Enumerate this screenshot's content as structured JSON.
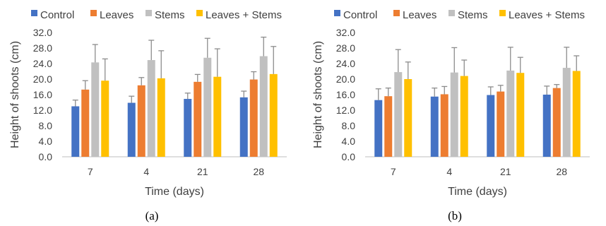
{
  "colors": {
    "Control": "#4472C4",
    "Leaves": "#ED7D31",
    "Stems": "#C0C0C0",
    "Leaves + Stems": "#FFC000",
    "error_bar": "#8c8c8c",
    "axis": "#bfbfbf"
  },
  "chart_data": [
    {
      "type": "bar",
      "caption": "(a)",
      "xlabel": "Time (days)",
      "ylabel": "Height of shoots (cm)",
      "ylim": [
        0,
        32
      ],
      "yticks": [
        "0.0",
        "4.0",
        "8.0",
        "12.0",
        "16.0",
        "20.0",
        "24.0",
        "28.0",
        "32.0"
      ],
      "grid": false,
      "legend_position": "top",
      "categories": [
        "7",
        "4",
        "21",
        "28"
      ],
      "series": [
        {
          "name": "Control",
          "values": [
            13.0,
            13.9,
            14.9,
            15.3
          ],
          "errors": [
            1.6,
            1.7,
            1.5,
            1.6
          ]
        },
        {
          "name": "Leaves",
          "values": [
            17.3,
            18.4,
            19.3,
            19.9
          ],
          "errors": [
            2.3,
            2.0,
            1.9,
            2.0
          ]
        },
        {
          "name": "Stems",
          "values": [
            24.3,
            24.9,
            25.5,
            25.9
          ],
          "errors": [
            4.6,
            5.1,
            5.0,
            4.9
          ]
        },
        {
          "name": "Leaves + Stems",
          "values": [
            19.6,
            20.2,
            20.6,
            21.3
          ],
          "errors": [
            5.6,
            7.1,
            7.2,
            7.1
          ]
        }
      ]
    },
    {
      "type": "bar",
      "caption": "(b)",
      "xlabel": "Time (days)",
      "ylabel": "Height of shoots (cm)",
      "ylim": [
        0,
        32
      ],
      "yticks": [
        "0.0",
        "4.0",
        "8.0",
        "12.0",
        "16.0",
        "20.0",
        "24.0",
        "28.0",
        "32.0"
      ],
      "grid": false,
      "legend_position": "top",
      "categories": [
        "7",
        "4",
        "21",
        "28"
      ],
      "series": [
        {
          "name": "Control",
          "values": [
            14.6,
            15.5,
            15.9,
            16.0
          ],
          "errors": [
            2.9,
            2.2,
            2.1,
            2.2
          ]
        },
        {
          "name": "Leaves",
          "values": [
            15.6,
            16.1,
            16.8,
            17.7
          ],
          "errors": [
            2.1,
            2.0,
            1.6,
            0.9
          ]
        },
        {
          "name": "Stems",
          "values": [
            21.8,
            21.7,
            22.2,
            22.9
          ],
          "errors": [
            5.8,
            6.4,
            6.0,
            5.3
          ]
        },
        {
          "name": "Leaves + Stems",
          "values": [
            20.0,
            20.8,
            21.6,
            22.1
          ],
          "errors": [
            4.4,
            4.1,
            4.0,
            3.9
          ]
        }
      ]
    }
  ]
}
